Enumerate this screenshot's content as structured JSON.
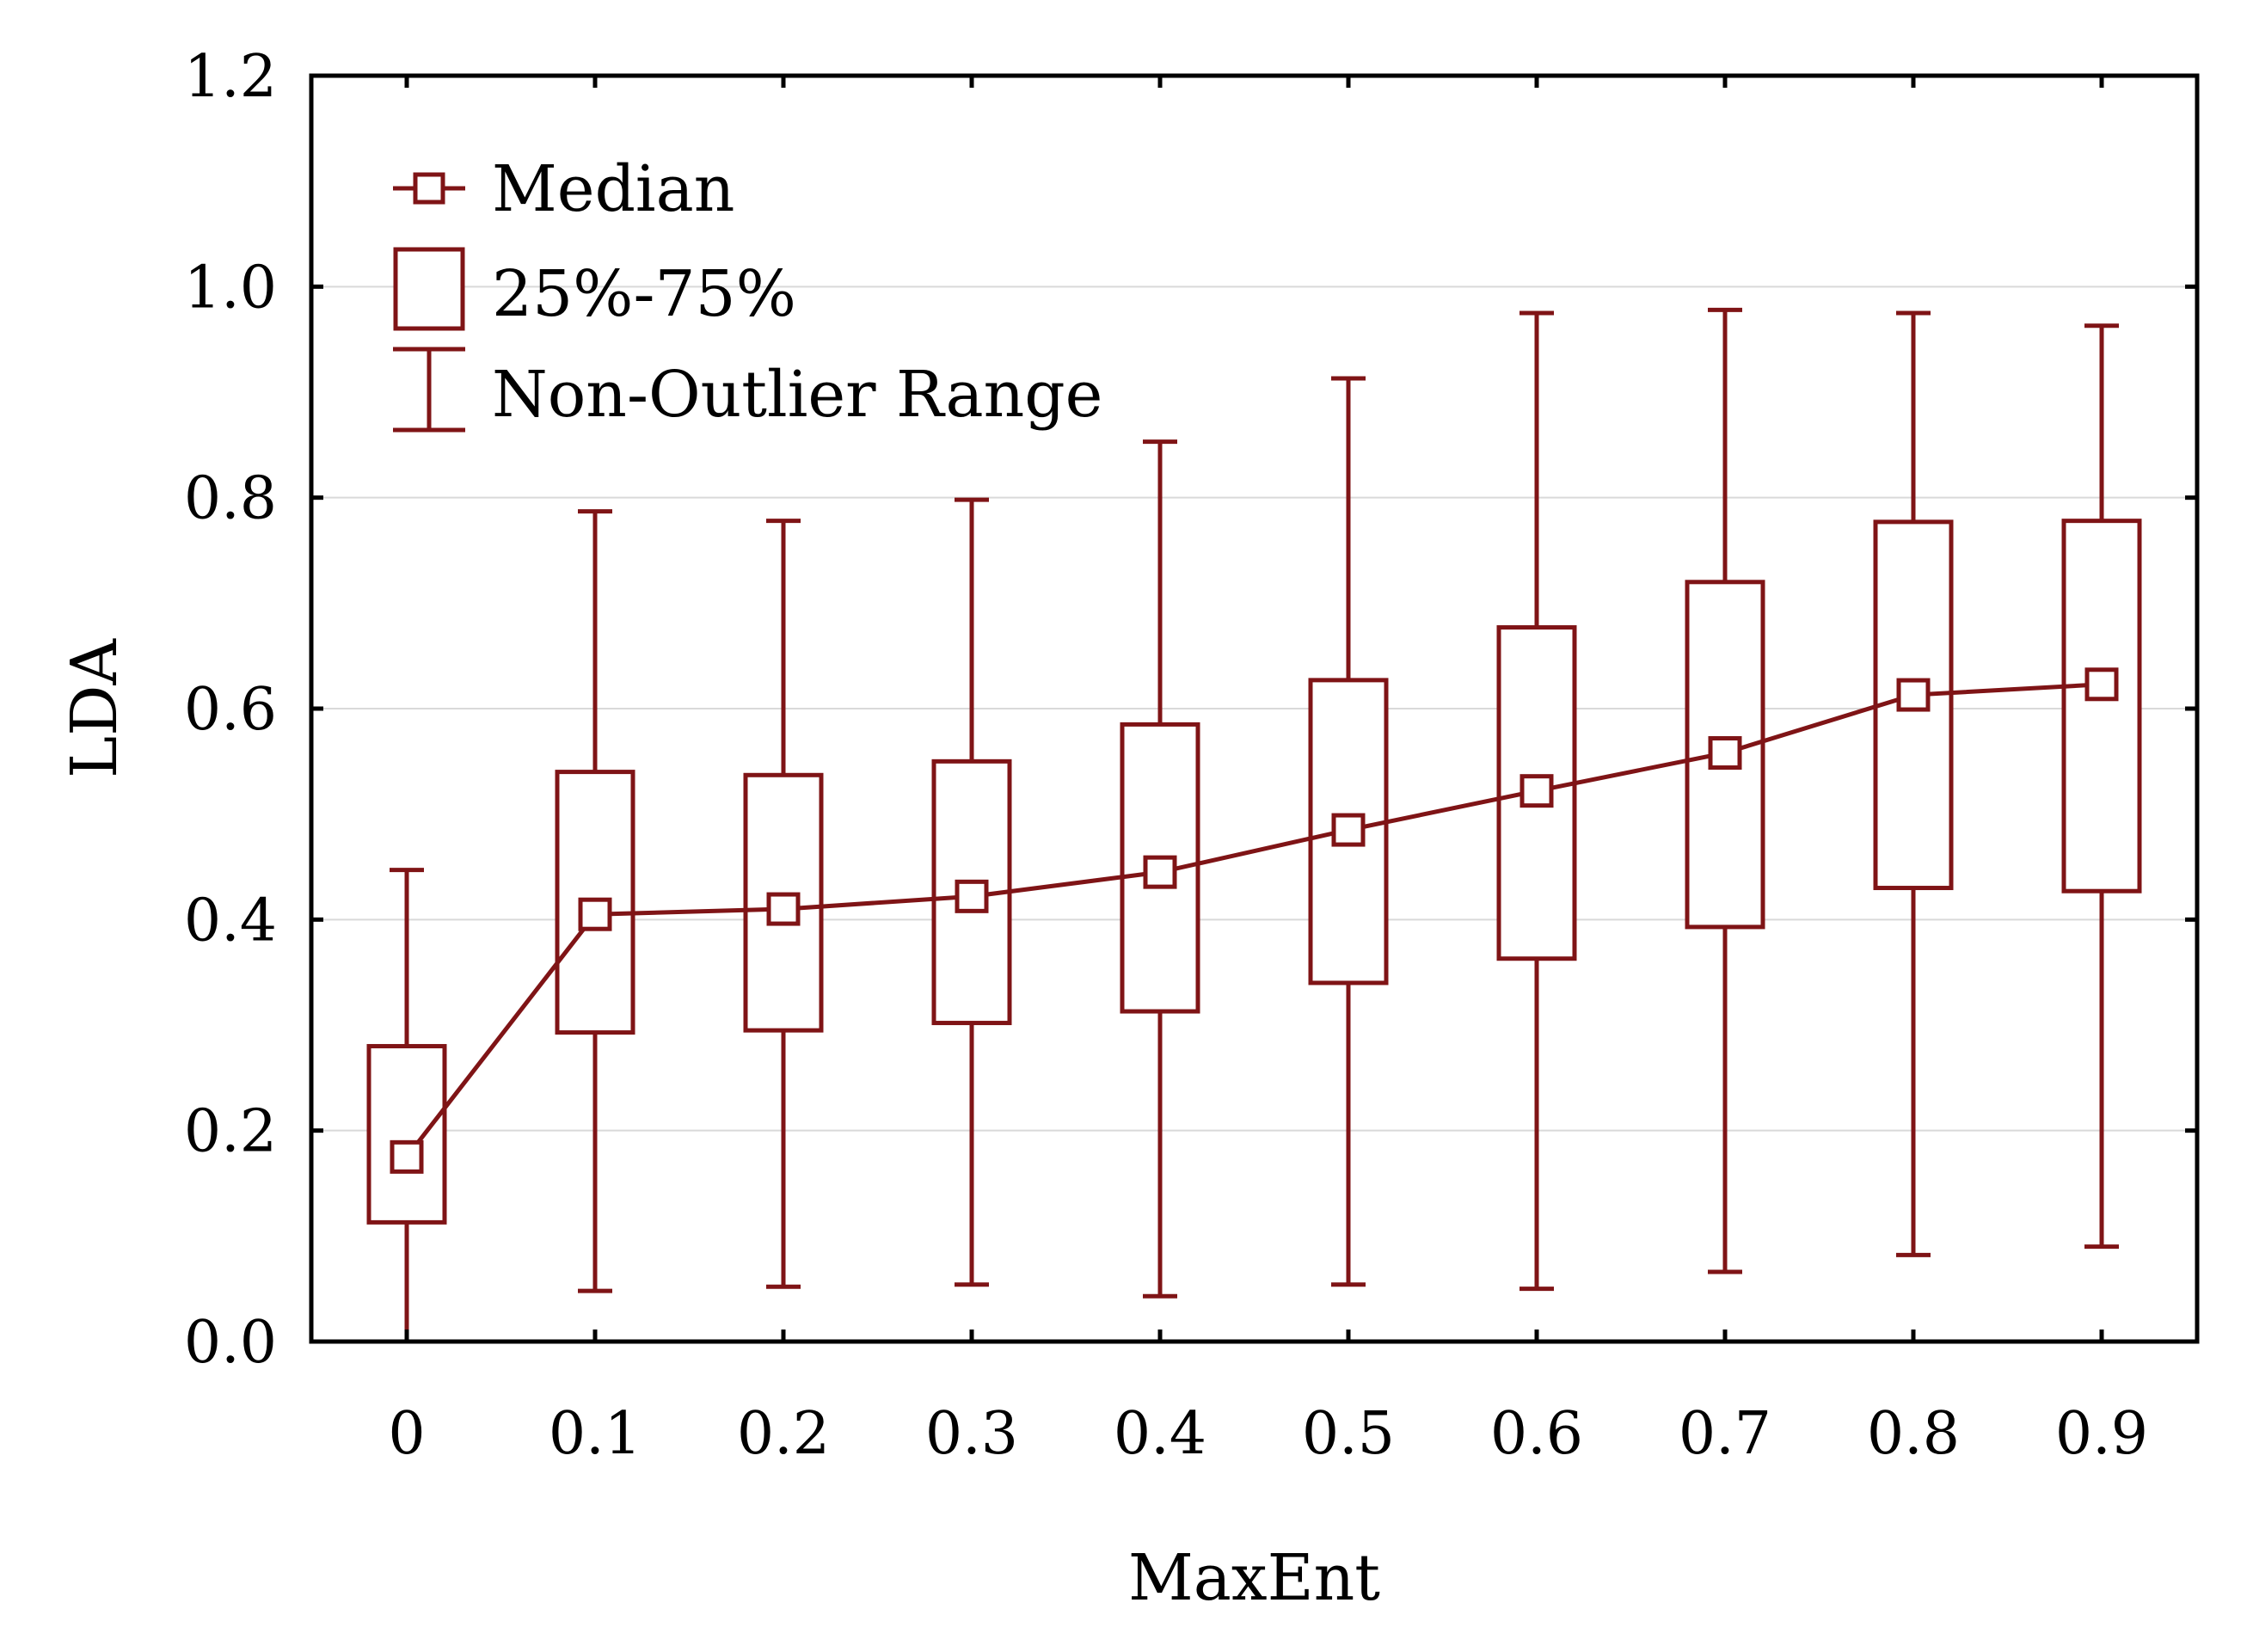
{
  "chart_data": {
    "type": "boxplot",
    "title": "",
    "xlabel": "MaxEnt",
    "ylabel": "LDA",
    "ylim": [
      0.0,
      1.2
    ],
    "yticks": [
      "0.0",
      "0.2",
      "0.4",
      "0.6",
      "0.8",
      "1.0",
      "1.2"
    ],
    "categories": [
      "0",
      "0.1",
      "0.2",
      "0.3",
      "0.4",
      "0.5",
      "0.6",
      "0.7",
      "0.8",
      "0.9"
    ],
    "series": [
      {
        "name": "Median",
        "values": [
          0.175,
          0.405,
          0.41,
          0.422,
          0.445,
          0.485,
          0.522,
          0.558,
          0.613,
          0.623
        ]
      }
    ],
    "q1": [
      0.113,
      0.293,
      0.295,
      0.302,
      0.313,
      0.34,
      0.363,
      0.393,
      0.43,
      0.427
    ],
    "q3": [
      0.28,
      0.54,
      0.537,
      0.55,
      0.585,
      0.627,
      0.677,
      0.72,
      0.777,
      0.778
    ],
    "whisker_low": [
      0.0,
      0.048,
      0.052,
      0.054,
      0.043,
      0.054,
      0.05,
      0.066,
      0.082,
      0.09
    ],
    "whisker_high": [
      0.447,
      0.787,
      0.778,
      0.798,
      0.853,
      0.913,
      0.975,
      0.978,
      0.975,
      0.963
    ],
    "legend": {
      "placement": "top-left",
      "items": [
        "Median",
        "25%-75%",
        "Non-Outlier Range"
      ]
    },
    "grid": true,
    "color": "#7f1416"
  }
}
